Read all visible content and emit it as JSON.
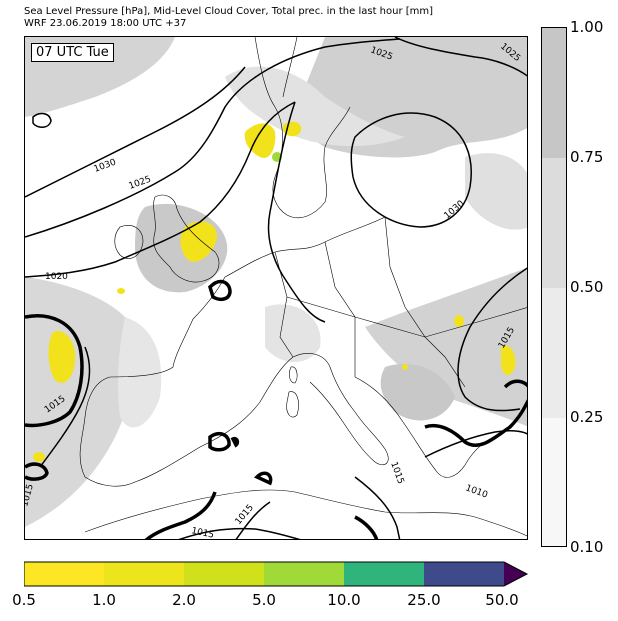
{
  "title": {
    "line1": "Sea Level Pressure [hPa], Mid-Level Cloud Cover, Total prec. in the last hour [mm]",
    "line2": "WRF 23.06.2019 18:00 UTC +37"
  },
  "map": {
    "time_label": "07 UTC Tue",
    "isobar_labels": [
      "1025",
      "1025",
      "1030",
      "1025",
      "1030",
      "1020",
      "1015",
      "1015",
      "1015",
      "1015",
      "1015",
      "1010",
      "1015"
    ]
  },
  "cloud_colorbar": {
    "ticks": [
      "1.00",
      "0.75",
      "0.50",
      "0.25",
      "0.10"
    ],
    "colors": [
      "#c6c6c6",
      "#dcdcdc",
      "#ebebeb",
      "#f7f7f7"
    ]
  },
  "precip_colorbar": {
    "ticks": [
      "0.5",
      "1.0",
      "2.0",
      "5.0",
      "10.0",
      "25.0",
      "50.0"
    ],
    "colors": [
      "#fde725",
      "#ede51b",
      "#d0e11c",
      "#a0da39",
      "#2fb47c",
      "#3e4a89",
      "#440154"
    ]
  }
}
